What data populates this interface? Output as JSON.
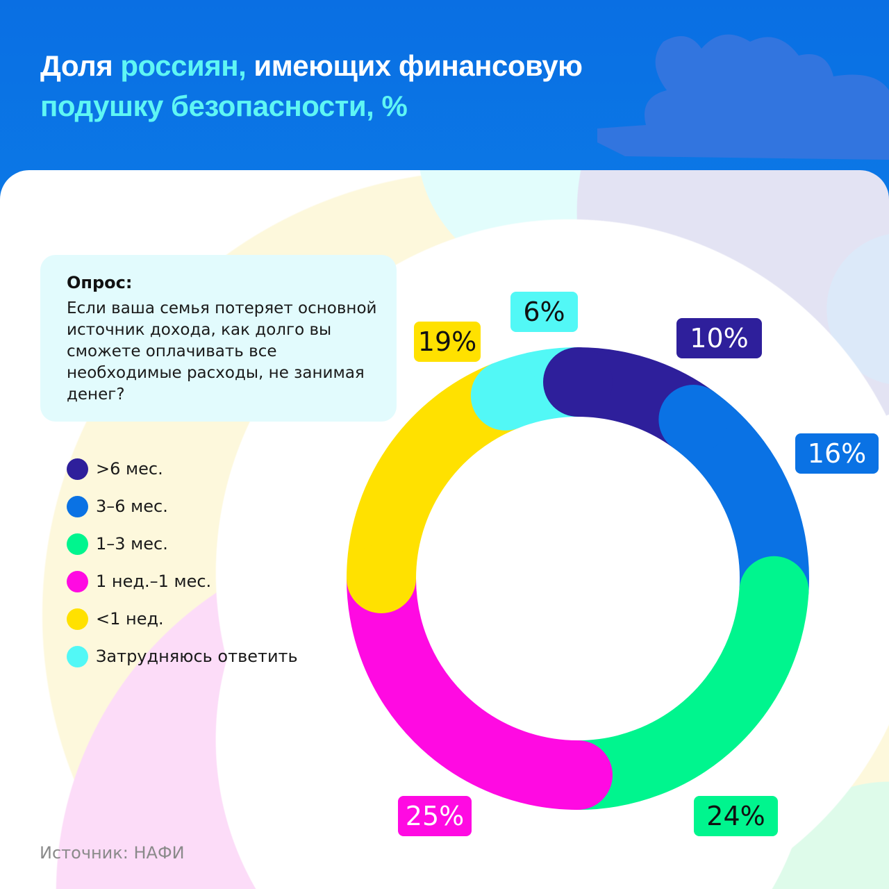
{
  "header": {
    "title_part1": "Доля ",
    "title_highlight1": "россиян,",
    "title_part2": " имеющих финансовую",
    "title_highlight2": "подушку безопасности, %"
  },
  "survey": {
    "heading": "Опрос:",
    "question": "Если ваша семья потеряет основной источник дохода, как долго вы сможете оплачивать все необходимые расходы, не занимая денег?"
  },
  "source": "Источник: НАФИ",
  "colors": {
    "header_bg": "#0a72e4",
    "title_highlight": "#5ff6f4"
  },
  "chart_data": {
    "type": "pie",
    "variant": "donut",
    "title": "Доля россиян, имеющих финансовую подушку безопасности, %",
    "categories": [
      ">6 мес.",
      "3–6 мес.",
      "1–3 мес.",
      "1 нед.–1 мес.",
      "<1 нед.",
      "Затрудняюсь ответить"
    ],
    "values": [
      10,
      16,
      24,
      25,
      19,
      6
    ],
    "labels": [
      "10%",
      "16%",
      "24%",
      "25%",
      "19%",
      "6%"
    ],
    "colors": [
      "#2e1f9b",
      "#0a72e4",
      "#00f58e",
      "#ff0ae2",
      "#ffe100",
      "#52f8f6"
    ],
    "label_text_colors": [
      "#ffffff",
      "#ffffff",
      "#111111",
      "#ffffff",
      "#111111",
      "#111111"
    ],
    "legend_position": "left"
  }
}
